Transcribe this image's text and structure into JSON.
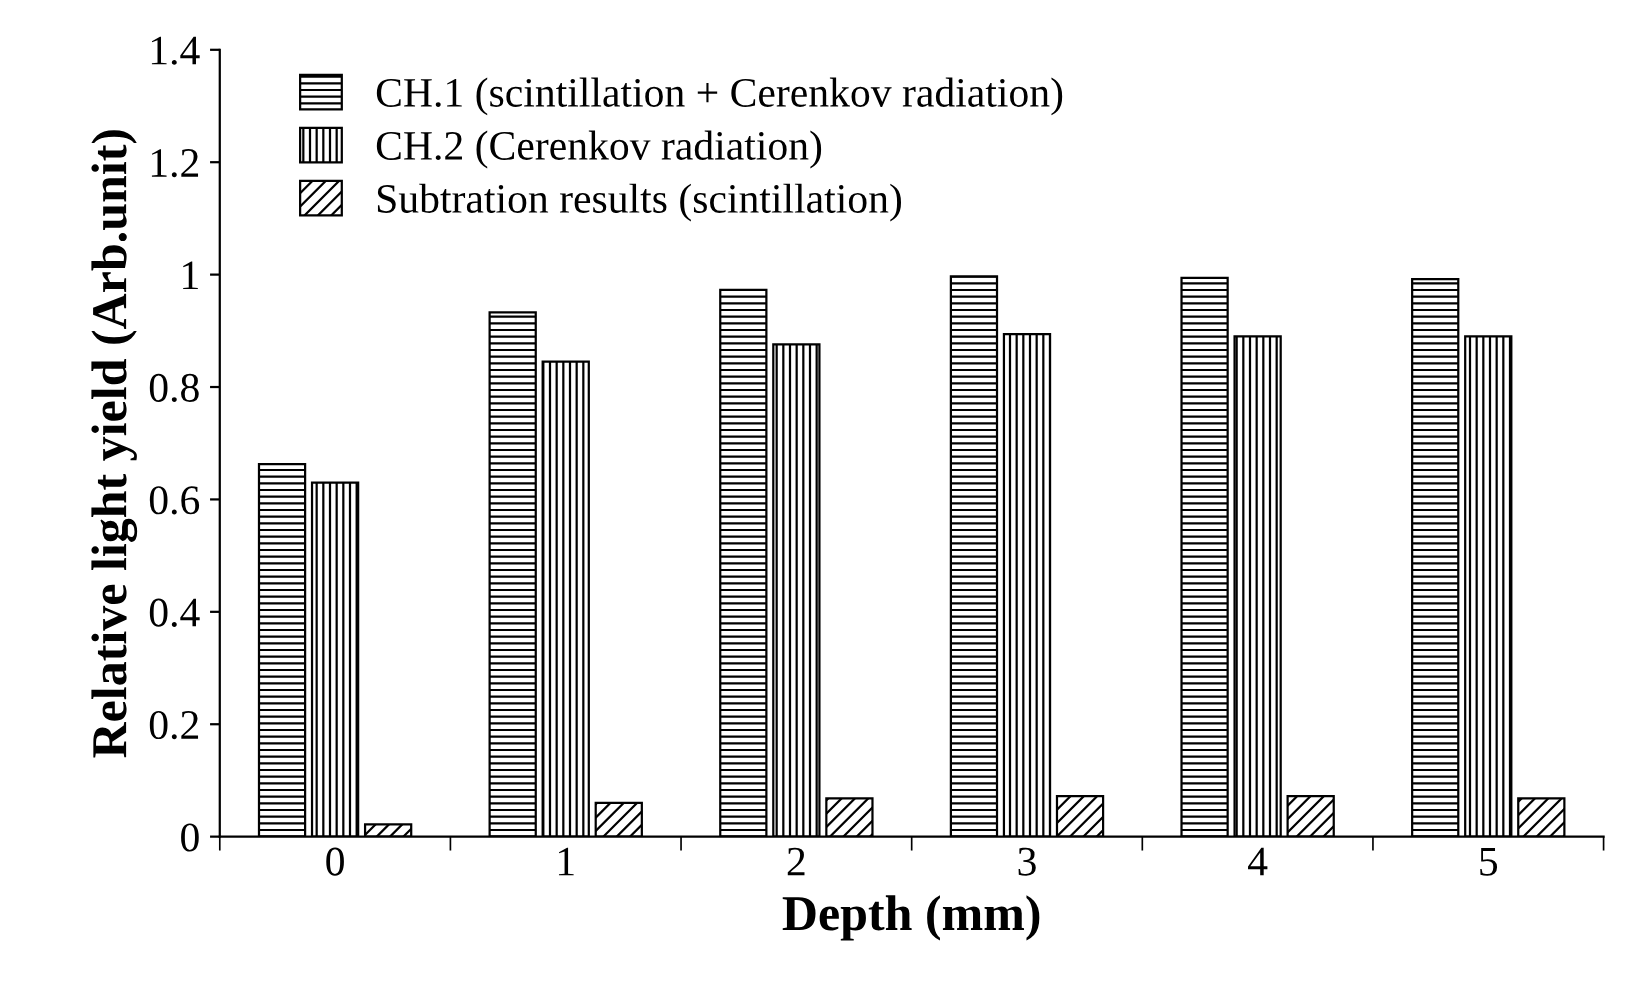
{
  "chart_data": {
    "type": "bar",
    "xlabel": "Depth (mm)",
    "ylabel": "Relative light yield (Arb.unit)",
    "categories": [
      "0",
      "1",
      "2",
      "3",
      "4",
      "5"
    ],
    "series": [
      {
        "name": "CH.1 (scintillation + Cerenkov radiation)",
        "color": "#000000",
        "values": [
          0.663,
          0.933,
          0.973,
          0.997,
          0.994,
          0.992
        ]
      },
      {
        "name": "CH.2 (Cerenkov radiation)",
        "color": "#000000",
        "values": [
          0.63,
          0.845,
          0.876,
          0.894,
          0.89,
          0.89
        ]
      },
      {
        "name": "Subtration results (scintillation)",
        "color": "#000000",
        "values": [
          0.022,
          0.06,
          0.068,
          0.072,
          0.072,
          0.068
        ]
      }
    ],
    "ylim": [
      0,
      1.4
    ],
    "yticks": [
      0,
      0.2,
      0.4,
      0.6,
      0.8,
      1,
      1.2,
      1.4
    ],
    "grid": false,
    "legend": "top left"
  }
}
